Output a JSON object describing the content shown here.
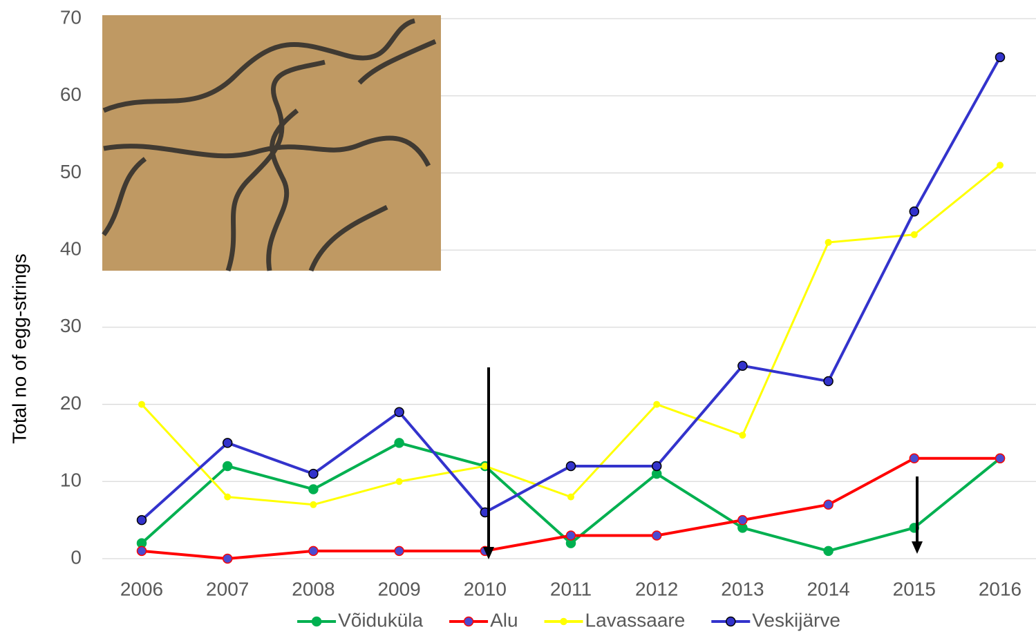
{
  "chart_data": {
    "type": "line",
    "y_label": "Total no of egg-strings",
    "categories": [
      "2006",
      "2007",
      "2008",
      "2009",
      "2010",
      "2011",
      "2012",
      "2013",
      "2014",
      "2015",
      "2016"
    ],
    "series": [
      {
        "name": "Võiduküla",
        "color": "#00b050",
        "marker_fill": "#00b050",
        "values": [
          2,
          12,
          9,
          15,
          12,
          2,
          11,
          4,
          1,
          4,
          13
        ]
      },
      {
        "name": "Alu",
        "color": "#ff0000",
        "marker_fill": "#4b4bd1",
        "values": [
          1,
          0,
          1,
          1,
          1,
          3,
          3,
          5,
          7,
          13,
          13
        ]
      },
      {
        "name": "Lavassaare",
        "color": "#ffff00",
        "marker_fill": "#ffff00",
        "values": [
          20,
          8,
          7,
          10,
          12,
          8,
          20,
          16,
          41,
          42,
          51
        ]
      },
      {
        "name": "Veskijärve",
        "color": "#3333cc",
        "marker_fill": "#3333cc",
        "values": [
          5,
          15,
          11,
          19,
          6,
          12,
          12,
          25,
          23,
          45,
          65
        ]
      }
    ],
    "ylim": [
      0,
      70
    ],
    "yticks": [
      0,
      10,
      20,
      30,
      40,
      50,
      60,
      70
    ],
    "grid": true,
    "legend": "bottom"
  }
}
